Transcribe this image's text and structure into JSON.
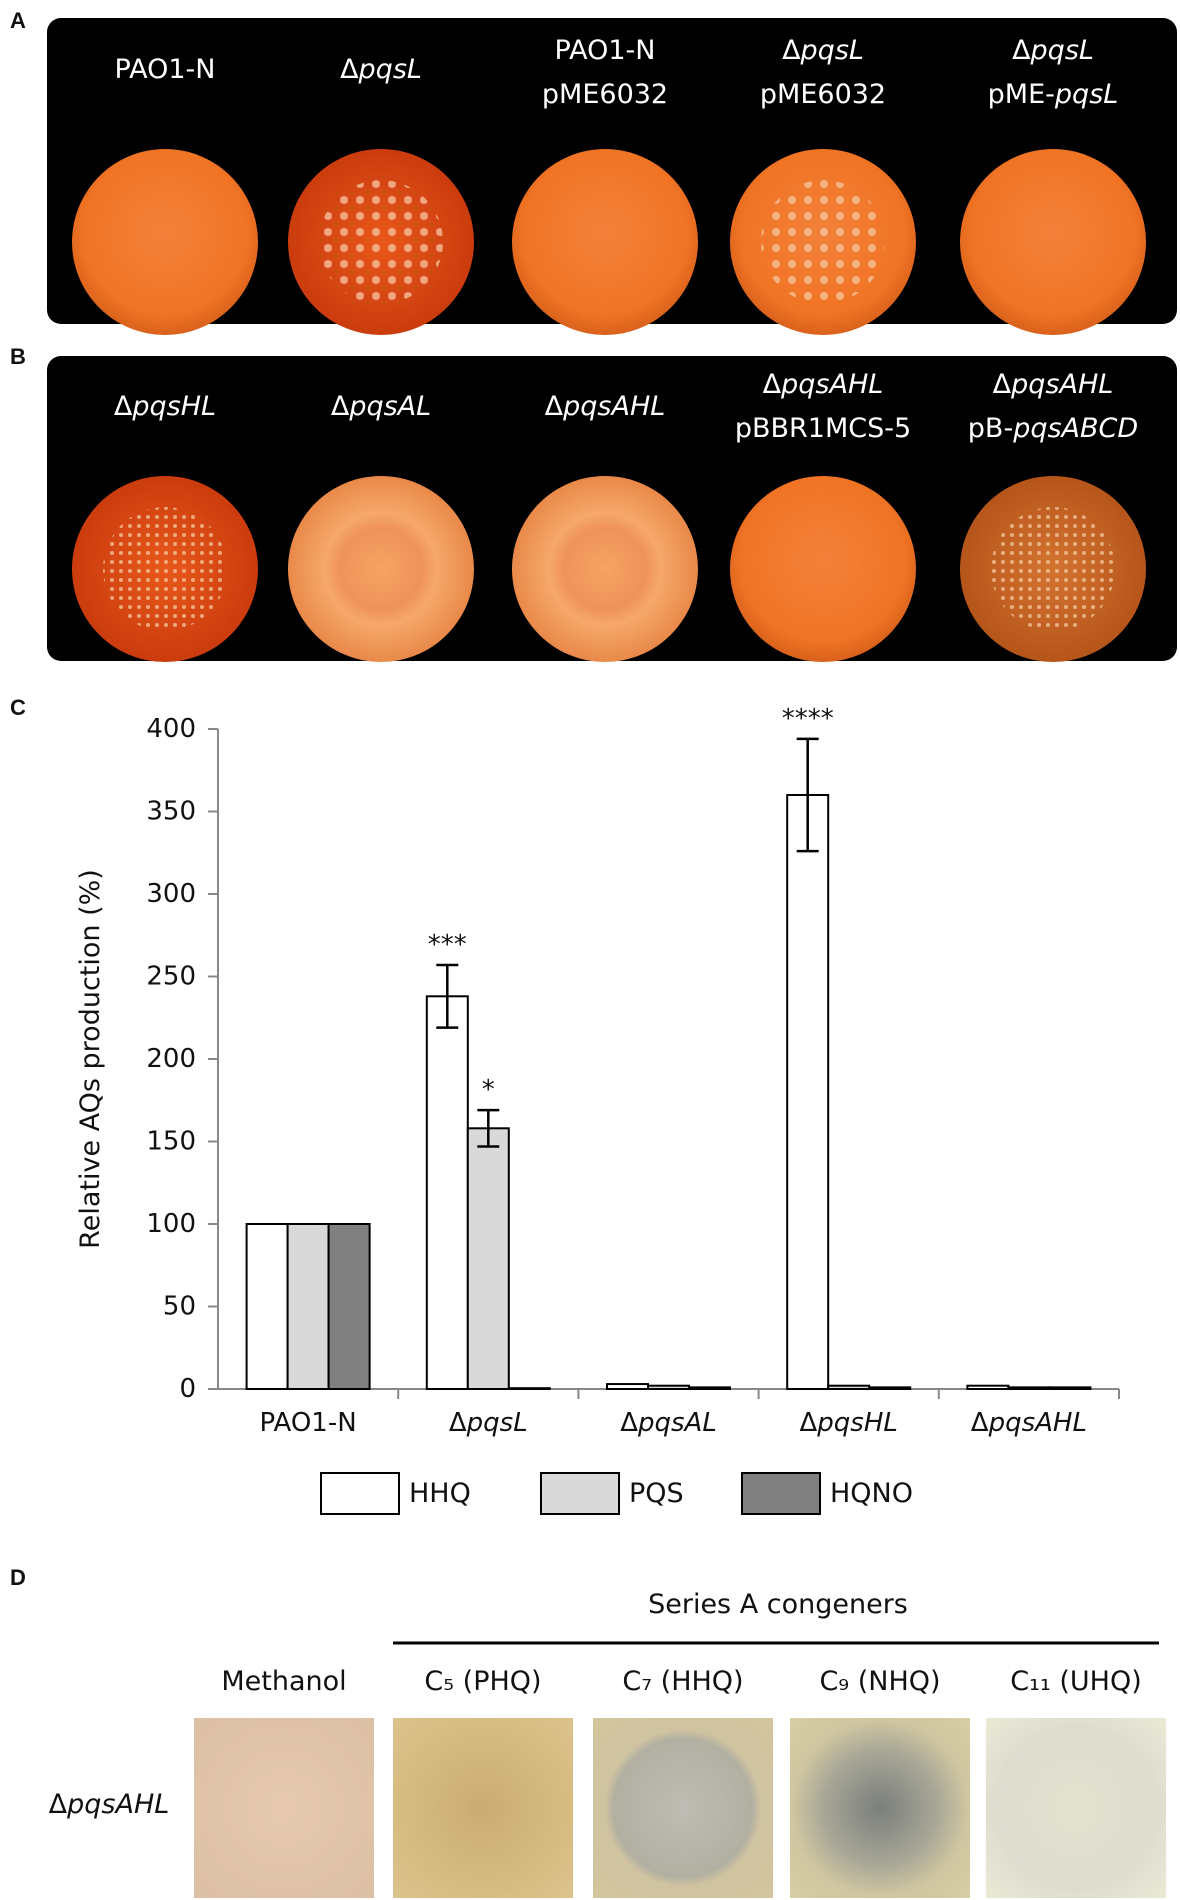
{
  "panels": {
    "a": {
      "label": "A",
      "strains": [
        [
          "PAO1-N"
        ],
        [
          "ΔpqsL"
        ],
        [
          "PAO1-N",
          "pME6032"
        ],
        [
          "ΔpqsL",
          "pME6032"
        ],
        [
          "ΔpqsL",
          "pME-pqsL"
        ]
      ]
    },
    "b": {
      "label": "B",
      "strains": [
        [
          "ΔpqsHL"
        ],
        [
          "ΔpqsAL"
        ],
        [
          "ΔpqsAHL"
        ],
        [
          "ΔpqsAHL",
          "pBBR1MCS-5"
        ],
        [
          "ΔpqsAHL",
          "pB-pqsABCD"
        ]
      ]
    },
    "c": {
      "label": "C"
    },
    "d": {
      "label": "D",
      "header": "Series A congeners",
      "columns": [
        "Methanol",
        "C₅ (PHQ)",
        "C₇ (HHQ)",
        "C₉ (NHQ)",
        "C₁₁ (UHQ)"
      ],
      "row_label": "ΔpqsAHL"
    }
  },
  "chart_data": {
    "type": "bar",
    "y_label": "Relative AQs production (%)",
    "categories": [
      "PAO1-N",
      "ΔpqsL",
      "ΔpqsAL",
      "ΔpqsHL",
      "ΔpqsAHL"
    ],
    "series": [
      {
        "name": "HHQ",
        "color": "#ffffff",
        "values": [
          100,
          238,
          3,
          360,
          2
        ],
        "errors": [
          null,
          19,
          null,
          34,
          null
        ],
        "annotations": [
          null,
          "***",
          null,
          "****",
          null
        ]
      },
      {
        "name": "PQS",
        "color": "#d9d9d9",
        "values": [
          100,
          158,
          2,
          2,
          1
        ],
        "errors": [
          null,
          11,
          null,
          null,
          null
        ],
        "annotations": [
          null,
          "*",
          null,
          null,
          null
        ]
      },
      {
        "name": "HQNO",
        "color": "#808080",
        "values": [
          100,
          0.5,
          1,
          1,
          1
        ],
        "errors": [
          null,
          null,
          null,
          null,
          null
        ],
        "annotations": [
          null,
          null,
          null,
          null,
          null
        ]
      }
    ],
    "ylim": [
      0,
      400
    ],
    "yticks": [
      0,
      50,
      100,
      150,
      200,
      250,
      300,
      350,
      400
    ],
    "grid": false
  }
}
